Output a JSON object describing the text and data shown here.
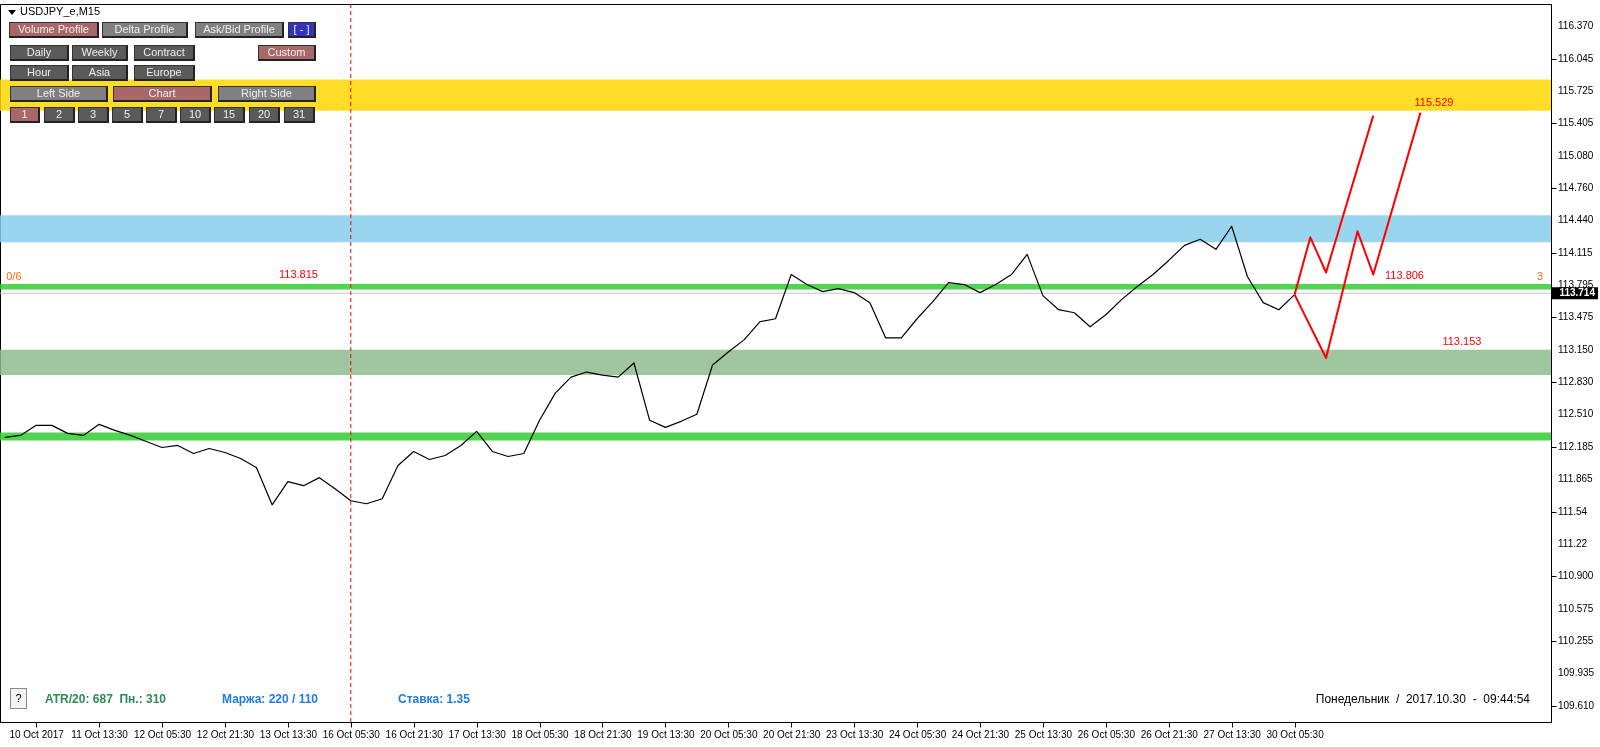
{
  "chart_data": {
    "type": "line",
    "title": "USDJPY_e,M15",
    "categories": [
      null,
      null,
      "10 Oct 2017",
      null,
      null,
      null,
      "11 Oct 13:30",
      null,
      null,
      null,
      "12 Oct 05:30",
      null,
      null,
      null,
      "12 Oct 21:30",
      null,
      null,
      null,
      "13 Oct 13:30",
      null,
      null,
      null,
      "16 Oct 05:30",
      null,
      null,
      null,
      "16 Oct 21:30",
      null,
      null,
      null,
      "17 Oct 13:30",
      null,
      null,
      null,
      "18 Oct 05:30",
      null,
      null,
      null,
      "18 Oct 21:30",
      null,
      null,
      null,
      "19 Oct 13:30",
      null,
      null,
      null,
      "20 Oct 05:30",
      null,
      null,
      null,
      "20 Oct 21:30",
      null,
      null,
      null,
      "23 Oct 13:30",
      null,
      null,
      null,
      "24 Oct 05:30",
      null,
      null,
      null,
      "24 Oct 21:30",
      null,
      null,
      null,
      "25 Oct 13:30",
      null,
      null,
      null,
      "26 Oct 05:30",
      null,
      null,
      null,
      "26 Oct 21:30",
      null,
      null,
      null,
      "27 Oct 13:30",
      null,
      null,
      null,
      "30 Oct 05:30",
      null,
      null,
      null,
      null,
      null,
      null,
      null,
      null,
      null,
      null,
      null,
      null,
      null,
      null,
      null,
      null
    ],
    "ylim": [
      109.45,
      116.59
    ],
    "yticks": [
      {
        "value": 116.37,
        "label": "116.370"
      },
      116.045,
      115.725,
      115.405,
      {
        "value": 115.08,
        "label": "115.080"
      },
      {
        "value": 114.76,
        "label": "114.760"
      },
      {
        "value": 114.44,
        "label": "114.440"
      },
      114.115,
      113.795,
      113.475,
      {
        "value": 113.15,
        "label": "113.150"
      },
      {
        "value": 112.83,
        "label": "112.830"
      },
      {
        "value": 112.51,
        "label": "112.510"
      },
      112.185,
      111.865,
      111.54,
      111.22,
      {
        "value": 110.9,
        "label": "110.900"
      },
      110.575,
      110.255,
      109.935,
      {
        "value": 109.61,
        "label": "109.610"
      }
    ],
    "series": [
      {
        "color": "#000000",
        "values": [
          112.28,
          112.3,
          112.4,
          112.4,
          112.32,
          112.3,
          112.41,
          112.35,
          112.3,
          112.24,
          112.18,
          112.2,
          112.12,
          112.17,
          112.13,
          112.07,
          111.98,
          111.61,
          111.84,
          111.8,
          111.88,
          111.77,
          111.65,
          111.62,
          111.67,
          112.0,
          112.14,
          112.06,
          112.1,
          112.2,
          112.34,
          112.14,
          112.09,
          112.12,
          112.45,
          112.72,
          112.88,
          112.93,
          112.9,
          112.88,
          113.02,
          112.45,
          112.38,
          112.44,
          112.51,
          113.0,
          113.13,
          113.25,
          113.43,
          113.46,
          113.9,
          113.8,
          113.73,
          113.76,
          113.72,
          113.62,
          113.27,
          113.27,
          113.46,
          113.63,
          113.82,
          113.8,
          113.72,
          113.8,
          113.9,
          114.1,
          113.69,
          113.55,
          113.52,
          113.38,
          113.5,
          113.65,
          113.78,
          113.9,
          114.04,
          114.19,
          114.25,
          114.15,
          114.38,
          113.88,
          113.62,
          113.55,
          113.7,
          null,
          null,
          null,
          null,
          null,
          null,
          null,
          null,
          null,
          null,
          null,
          null,
          null,
          null,
          null,
          null
        ]
      },
      {
        "color": "#ff0000",
        "values": [
          null,
          null,
          null,
          null,
          null,
          null,
          null,
          null,
          null,
          null,
          null,
          null,
          null,
          null,
          null,
          null,
          null,
          null,
          null,
          null,
          null,
          null,
          null,
          null,
          null,
          null,
          null,
          null,
          null,
          null,
          null,
          null,
          null,
          null,
          null,
          null,
          null,
          null,
          null,
          null,
          null,
          null,
          null,
          null,
          null,
          null,
          null,
          null,
          null,
          null,
          null,
          null,
          null,
          null,
          null,
          null,
          null,
          null,
          null,
          null,
          null,
          null,
          null,
          null,
          null,
          null,
          null,
          null,
          null,
          null,
          null,
          null,
          null,
          null,
          null,
          null,
          null,
          null,
          null,
          null,
          null,
          null,
          113.7,
          114.27,
          113.92,
          null,
          null,
          115.48,
          null,
          null,
          null,
          null,
          null,
          null,
          null,
          null,
          null,
          null,
          null
        ]
      },
      {
        "color": "#ff0000",
        "values": [
          null,
          null,
          null,
          null,
          null,
          null,
          null,
          null,
          null,
          null,
          null,
          null,
          null,
          null,
          null,
          null,
          null,
          null,
          null,
          null,
          null,
          null,
          null,
          null,
          null,
          null,
          null,
          null,
          null,
          null,
          null,
          null,
          null,
          null,
          null,
          null,
          null,
          null,
          null,
          null,
          null,
          null,
          null,
          null,
          null,
          null,
          null,
          null,
          null,
          null,
          null,
          null,
          null,
          null,
          null,
          null,
          null,
          null,
          null,
          null,
          null,
          null,
          null,
          null,
          null,
          null,
          null,
          null,
          null,
          null,
          null,
          null,
          null,
          null,
          null,
          null,
          null,
          null,
          null,
          null,
          null,
          null,
          113.7,
          null,
          113.07,
          null,
          114.33,
          113.9,
          null,
          null,
          115.51,
          null,
          null,
          null,
          null,
          null,
          null,
          null,
          null
        ]
      }
    ],
    "bands": [
      {
        "axis": "y",
        "from": 115.529,
        "to": 115.84,
        "color": "#ffd700"
      },
      {
        "axis": "y",
        "from": 114.22,
        "to": 114.49,
        "color": "#87ceeb"
      },
      {
        "axis": "y",
        "from": 113.75,
        "to": 113.806,
        "color": "#32cd32"
      },
      {
        "axis": "y",
        "from": 113.03,
        "to": 113.153,
        "color": "#8fbc8f"
      },
      {
        "axis": "y",
        "from": 112.9,
        "to": 113.03,
        "color": "#8fbc8f"
      },
      {
        "axis": "y",
        "from": 112.25,
        "to": 112.33,
        "color": "#32cd32"
      }
    ],
    "ref_lines": [
      {
        "axis": "y",
        "value": 113.714,
        "label": "113.714",
        "color": "#c0c0c0"
      },
      {
        "axis": "x",
        "value": "16 Oct 05:30",
        "color": "#ff0000",
        "line_style": "dashed"
      }
    ],
    "annotations": [
      {
        "text": "113.815",
        "y": 113.815
      },
      {
        "text": "113.806",
        "y": 113.806
      },
      {
        "text": "113.153",
        "y": 113.153
      },
      {
        "text": "115.529",
        "y": 115.529
      },
      {
        "text": "0/6",
        "y": 113.8
      },
      {
        "text": "3",
        "y": 113.8
      },
      "Volume Profile",
      "Delta Profile",
      "Ask/Bid Profile",
      "[ - ]",
      "Daily",
      "Weekly",
      "Contract",
      "Custom",
      "Hour",
      "Asia",
      "Europe",
      "Left Side",
      "Chart",
      "Right Side",
      "1",
      "2",
      "3",
      "5",
      "7",
      "10",
      "15",
      "20",
      "31",
      "?",
      "ATR/20: 687  Пн.: 310",
      "Маржа: 220 / 110",
      "Ставка: 1.35",
      "Понедельник  /  2017.10.30  -  09:44:54"
    ]
  }
}
